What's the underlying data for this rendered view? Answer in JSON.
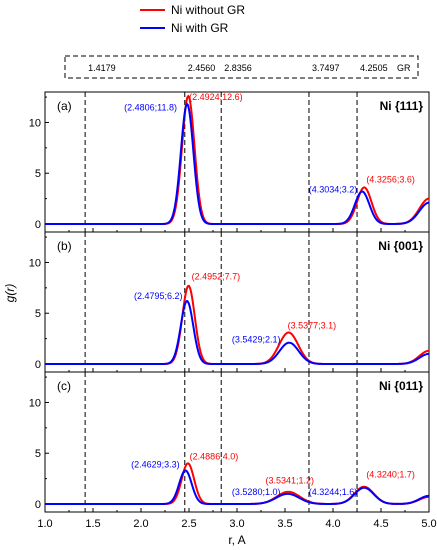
{
  "legend": {
    "series": [
      {
        "name": "Ni without GR",
        "color": "#ff0000"
      },
      {
        "name": "Ni with GR",
        "color": "#0000ff"
      }
    ]
  },
  "top_box": {
    "markers": [
      "1.4179",
      "2.4560",
      "2.8356",
      "3.7497",
      "4.2505"
    ],
    "label": "GR"
  },
  "chart_data": {
    "type": "line",
    "xlabel": "r, A",
    "ylabel": "g(r)",
    "xlim": [
      1.0,
      5.0
    ],
    "ylim": [
      0,
      13
    ],
    "xticks": [
      "1.0",
      "1.5",
      "2.0",
      "2.5",
      "3.0",
      "3.5",
      "4.0",
      "4.5",
      "5.0"
    ],
    "yticks": [
      "0",
      "5",
      "10"
    ],
    "vlines": [
      1.4179,
      2.456,
      2.8356,
      3.7497,
      4.2505
    ],
    "panels": [
      {
        "label": "(a)",
        "title": "Ni {111}",
        "series": [
          {
            "name": "Ni without GR",
            "color": "#ff0000",
            "peaks": [
              {
                "x": 2.4924,
                "y": 12.6,
                "w": 0.065
              },
              {
                "x": 4.3256,
                "y": 3.6,
                "w": 0.075
              }
            ],
            "end_value": 2.5
          },
          {
            "name": "Ni with GR",
            "color": "#0000ff",
            "peaks": [
              {
                "x": 2.4806,
                "y": 11.8,
                "w": 0.065
              },
              {
                "x": 4.3034,
                "y": 3.2,
                "w": 0.075
              }
            ],
            "end_value": 2.1
          }
        ],
        "annotations": [
          {
            "text": "(2.4806;11.8)",
            "color": "#0000ff",
            "x": 2.1,
            "y": 11.2
          },
          {
            "text": "(2.4924;12.6)",
            "color": "#ff0000",
            "x": 2.78,
            "y": 12.2
          },
          {
            "text": "(4.3034;3.2)",
            "color": "#0000ff",
            "x": 4.0,
            "y": 3.1
          },
          {
            "text": "(4.3256;3.6)",
            "color": "#ff0000",
            "x": 4.6,
            "y": 4.1
          }
        ]
      },
      {
        "label": "(b)",
        "title": "Ni {001}",
        "series": [
          {
            "name": "Ni without GR",
            "color": "#ff0000",
            "peaks": [
              {
                "x": 2.4952,
                "y": 7.7,
                "w": 0.065
              },
              {
                "x": 3.5377,
                "y": 3.1,
                "w": 0.1
              }
            ],
            "end_value": 1.3
          },
          {
            "name": "Ni with GR",
            "color": "#0000ff",
            "peaks": [
              {
                "x": 2.4795,
                "y": 6.2,
                "w": 0.065
              },
              {
                "x": 3.5429,
                "y": 2.1,
                "w": 0.1
              }
            ],
            "end_value": 1.0
          }
        ],
        "annotations": [
          {
            "text": "(2.4795;6.2)",
            "color": "#0000ff",
            "x": 2.18,
            "y": 6.4
          },
          {
            "text": "(2.4952;7.7)",
            "color": "#ff0000",
            "x": 2.78,
            "y": 8.3
          },
          {
            "text": "(3.5429;2.1)",
            "color": "#0000ff",
            "x": 3.2,
            "y": 2.1
          },
          {
            "text": "(3.5377;3.1)",
            "color": "#ff0000",
            "x": 3.78,
            "y": 3.5
          }
        ]
      },
      {
        "label": "(c)",
        "title": "Ni {011}",
        "series": [
          {
            "name": "Ni without GR",
            "color": "#ff0000",
            "peaks": [
              {
                "x": 2.4886,
                "y": 4.0,
                "w": 0.065
              },
              {
                "x": 3.5341,
                "y": 1.2,
                "w": 0.12
              },
              {
                "x": 4.324,
                "y": 1.7,
                "w": 0.1
              }
            ],
            "end_value": 0.7
          },
          {
            "name": "Ni with GR",
            "color": "#0000ff",
            "peaks": [
              {
                "x": 2.4629,
                "y": 3.3,
                "w": 0.065
              },
              {
                "x": 3.528,
                "y": 1.0,
                "w": 0.12
              },
              {
                "x": 4.3244,
                "y": 1.6,
                "w": 0.1
              }
            ],
            "end_value": 0.8
          }
        ],
        "annotations": [
          {
            "text": "(2.4629;3.3)",
            "color": "#0000ff",
            "x": 2.15,
            "y": 3.6
          },
          {
            "text": "(2.4886;4.0)",
            "color": "#ff0000",
            "x": 2.76,
            "y": 4.4
          },
          {
            "text": "(3.5280;1.0)",
            "color": "#0000ff",
            "x": 3.2,
            "y": 0.9
          },
          {
            "text": "(3.5341;1.2)",
            "color": "#ff0000",
            "x": 3.55,
            "y": 2.0
          },
          {
            "text": "(4.3244;1.6)",
            "color": "#0000ff",
            "x": 4.0,
            "y": 0.9
          },
          {
            "text": "(4.3240;1.7)",
            "color": "#ff0000",
            "x": 4.6,
            "y": 2.6
          }
        ]
      }
    ]
  }
}
